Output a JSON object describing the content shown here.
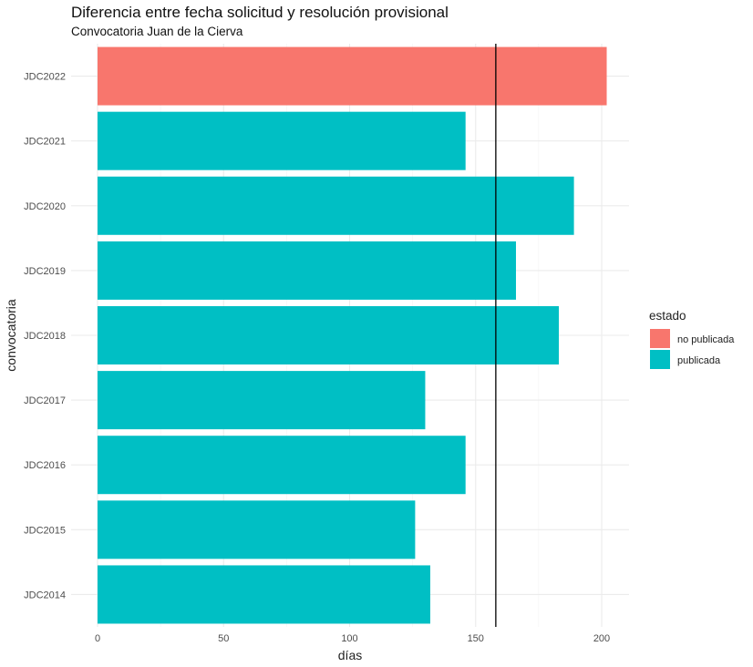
{
  "chart_data": {
    "type": "bar",
    "orientation": "horizontal",
    "title": "Diferencia entre fecha solicitud y resolución provisional",
    "subtitle": "Convocatoria Juan de la Cierva",
    "xlabel": "días",
    "ylabel": "convocatoria",
    "xlim": [
      0,
      212
    ],
    "x_ticks": [
      "0",
      "50",
      "100",
      "150",
      "200"
    ],
    "x_tick_values": [
      0,
      50,
      100,
      150,
      200
    ],
    "categories": [
      "JDC2022",
      "JDC2021",
      "JDC2020",
      "JDC2019",
      "JDC2018",
      "JDC2017",
      "JDC2016",
      "JDC2015",
      "JDC2014"
    ],
    "values": [
      202,
      146,
      189,
      166,
      183,
      130,
      146,
      126,
      132
    ],
    "estado": [
      "no publicada",
      "publicada",
      "publicada",
      "publicada",
      "publicada",
      "publicada",
      "publicada",
      "publicada",
      "publicada"
    ],
    "reference_line_x": 158,
    "grid": true,
    "legend": {
      "title": "estado",
      "position": "right",
      "entries": [
        {
          "label": "no publicada",
          "color": "#F8766D"
        },
        {
          "label": "publicada",
          "color": "#00BFC4"
        }
      ]
    }
  }
}
